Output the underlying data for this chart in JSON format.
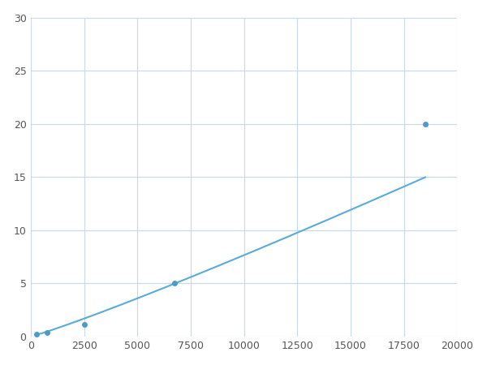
{
  "x_points": [
    250,
    750,
    2500,
    6750,
    18500
  ],
  "y_points": [
    0.2,
    0.35,
    1.1,
    5.0,
    20.0
  ],
  "line_color": "#5aabda",
  "marker_color": "#4a9bc8",
  "marker_size": 5,
  "xlim": [
    0,
    20000
  ],
  "ylim": [
    0,
    30
  ],
  "xticks": [
    0,
    2500,
    5000,
    7500,
    10000,
    12500,
    15000,
    17500,
    20000
  ],
  "yticks": [
    0,
    5,
    10,
    15,
    20,
    25,
    30
  ],
  "xtick_labels": [
    "0",
    "2500",
    "5000",
    "7500",
    "10000",
    "12500",
    "15000",
    "17500",
    "20000"
  ],
  "ytick_labels": [
    "0",
    "5",
    "10",
    "15",
    "20",
    "25",
    "30"
  ],
  "grid_color": "#c8d8e8",
  "background_color": "#ffffff",
  "figure_bg": "#ffffff"
}
